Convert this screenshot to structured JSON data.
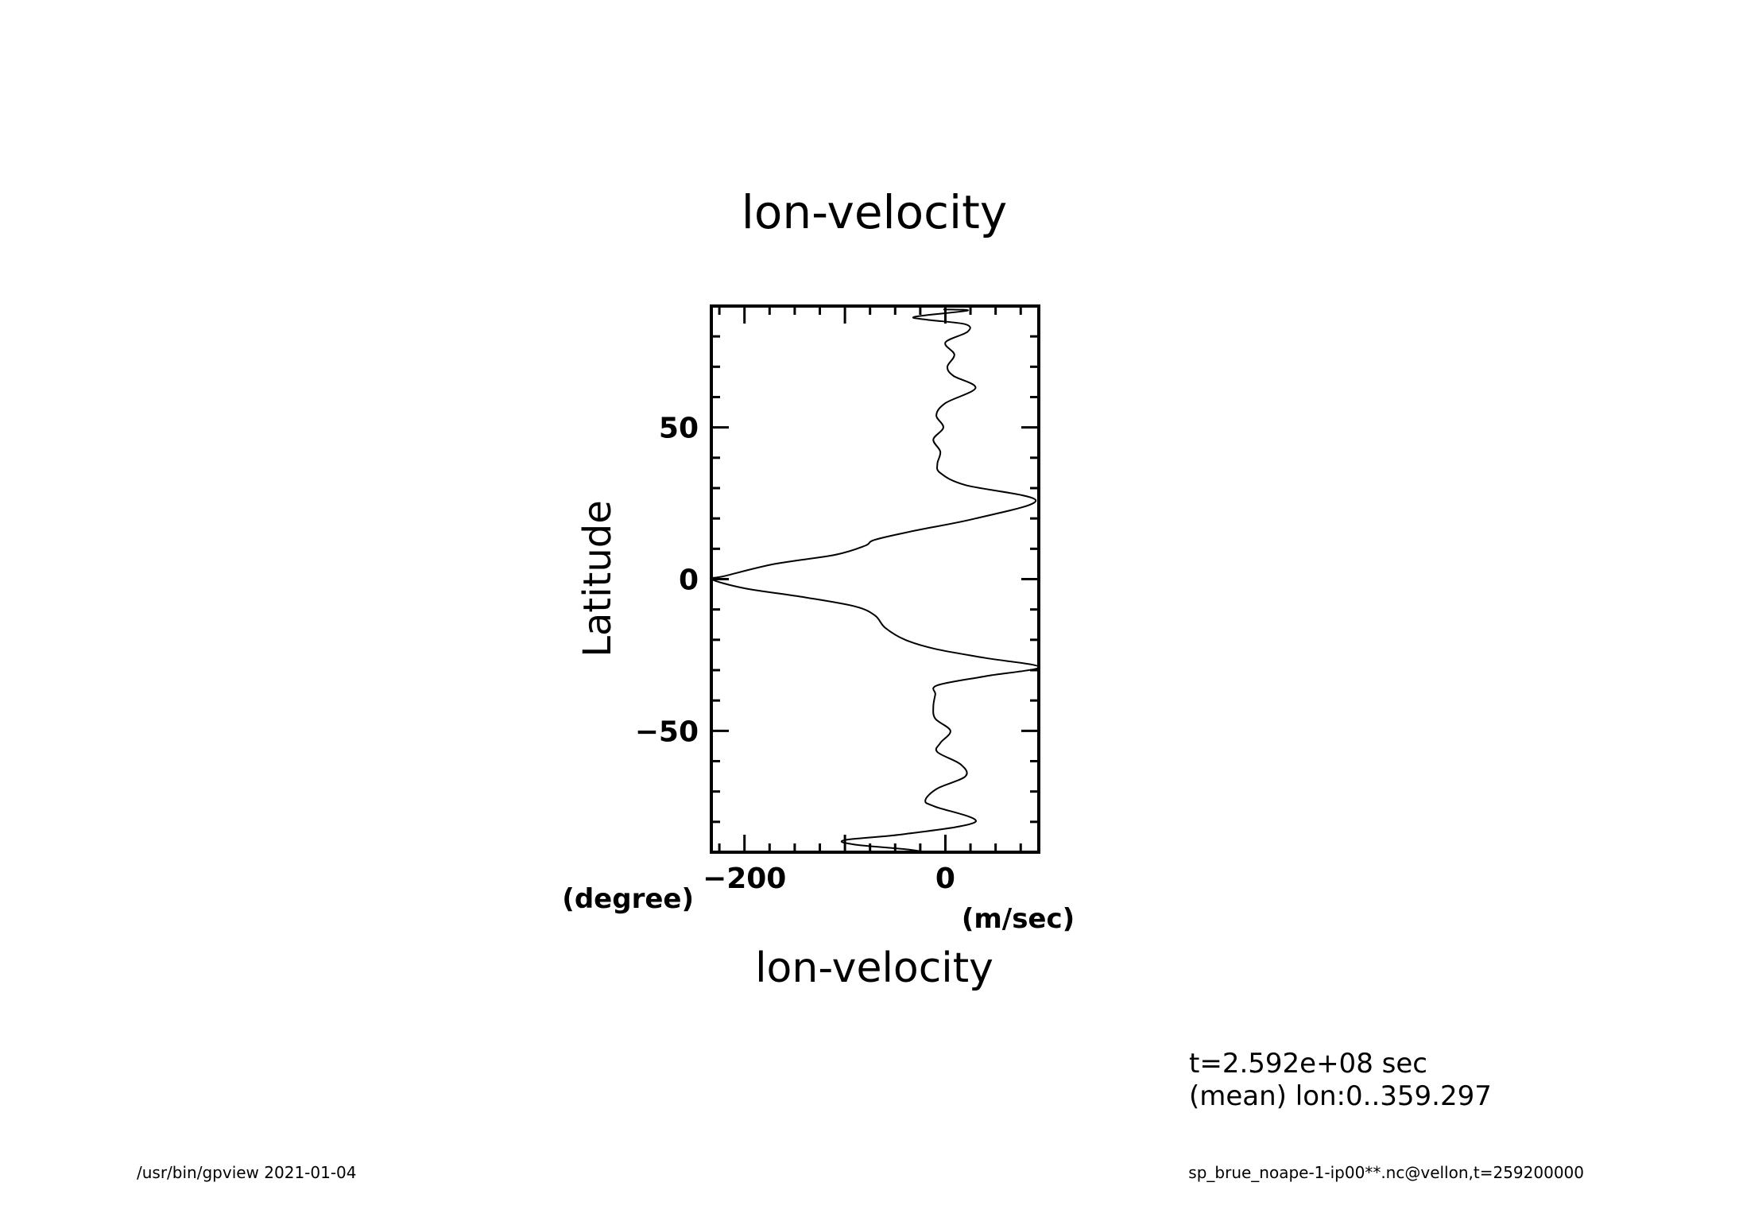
{
  "title": "lon-velocity",
  "footer": {
    "left": "/usr/bin/gpview   2021-01-04",
    "right": "sp_brue_noape-1-ip00**.nc@vellon,t=259200000"
  },
  "info": {
    "line1": "t=2.592e+08 sec",
    "line2": "(mean) lon:0..359.297"
  },
  "chart_data": {
    "type": "line",
    "title": "lon-velocity",
    "xlabel": "lon-velocity",
    "xunit": "(m/sec)",
    "ylabel": "Latitude",
    "yunit": "(degree)",
    "xlim": [
      -233,
      93
    ],
    "ylim": [
      -90,
      90
    ],
    "xticks": [
      -200,
      0
    ],
    "yticks": [
      -50,
      0,
      50
    ],
    "grid": false,
    "series": [
      {
        "points": [
          [
            -2,
            88.9
          ],
          [
            22,
            88.5
          ],
          [
            -30,
            86.5
          ],
          [
            -18,
            85.5
          ],
          [
            20,
            84
          ],
          [
            22,
            81.5
          ],
          [
            0,
            78
          ],
          [
            9,
            74
          ],
          [
            2,
            70
          ],
          [
            8,
            67
          ],
          [
            30,
            63
          ],
          [
            0,
            58
          ],
          [
            -9,
            54
          ],
          [
            -2,
            50
          ],
          [
            -12,
            46
          ],
          [
            -5,
            42
          ],
          [
            -8,
            38
          ],
          [
            -5,
            35
          ],
          [
            20,
            31
          ],
          [
            90,
            26
          ],
          [
            30,
            20
          ],
          [
            -30,
            16
          ],
          [
            -70,
            13
          ],
          [
            -80,
            11
          ],
          [
            -110,
            8
          ],
          [
            -170,
            5
          ],
          [
            -220,
            1
          ],
          [
            -233,
            0
          ],
          [
            -200,
            -3
          ],
          [
            -140,
            -6
          ],
          [
            -90,
            -9
          ],
          [
            -70,
            -12
          ],
          [
            -60,
            -16
          ],
          [
            -40,
            -20
          ],
          [
            -10,
            -23
          ],
          [
            40,
            -26
          ],
          [
            93,
            -29
          ],
          [
            40,
            -32
          ],
          [
            -8,
            -35
          ],
          [
            -10,
            -38
          ],
          [
            -12,
            -42
          ],
          [
            -10,
            -46
          ],
          [
            5,
            -50
          ],
          [
            -5,
            -54
          ],
          [
            -8,
            -57
          ],
          [
            15,
            -61
          ],
          [
            20,
            -65
          ],
          [
            -8,
            -69
          ],
          [
            -20,
            -73
          ],
          [
            -10,
            -75
          ],
          [
            30,
            -80
          ],
          [
            -40,
            -84
          ],
          [
            -100,
            -86
          ],
          [
            -90,
            -87.5
          ],
          [
            -40,
            -89
          ],
          [
            -20,
            -90
          ]
        ]
      }
    ]
  }
}
